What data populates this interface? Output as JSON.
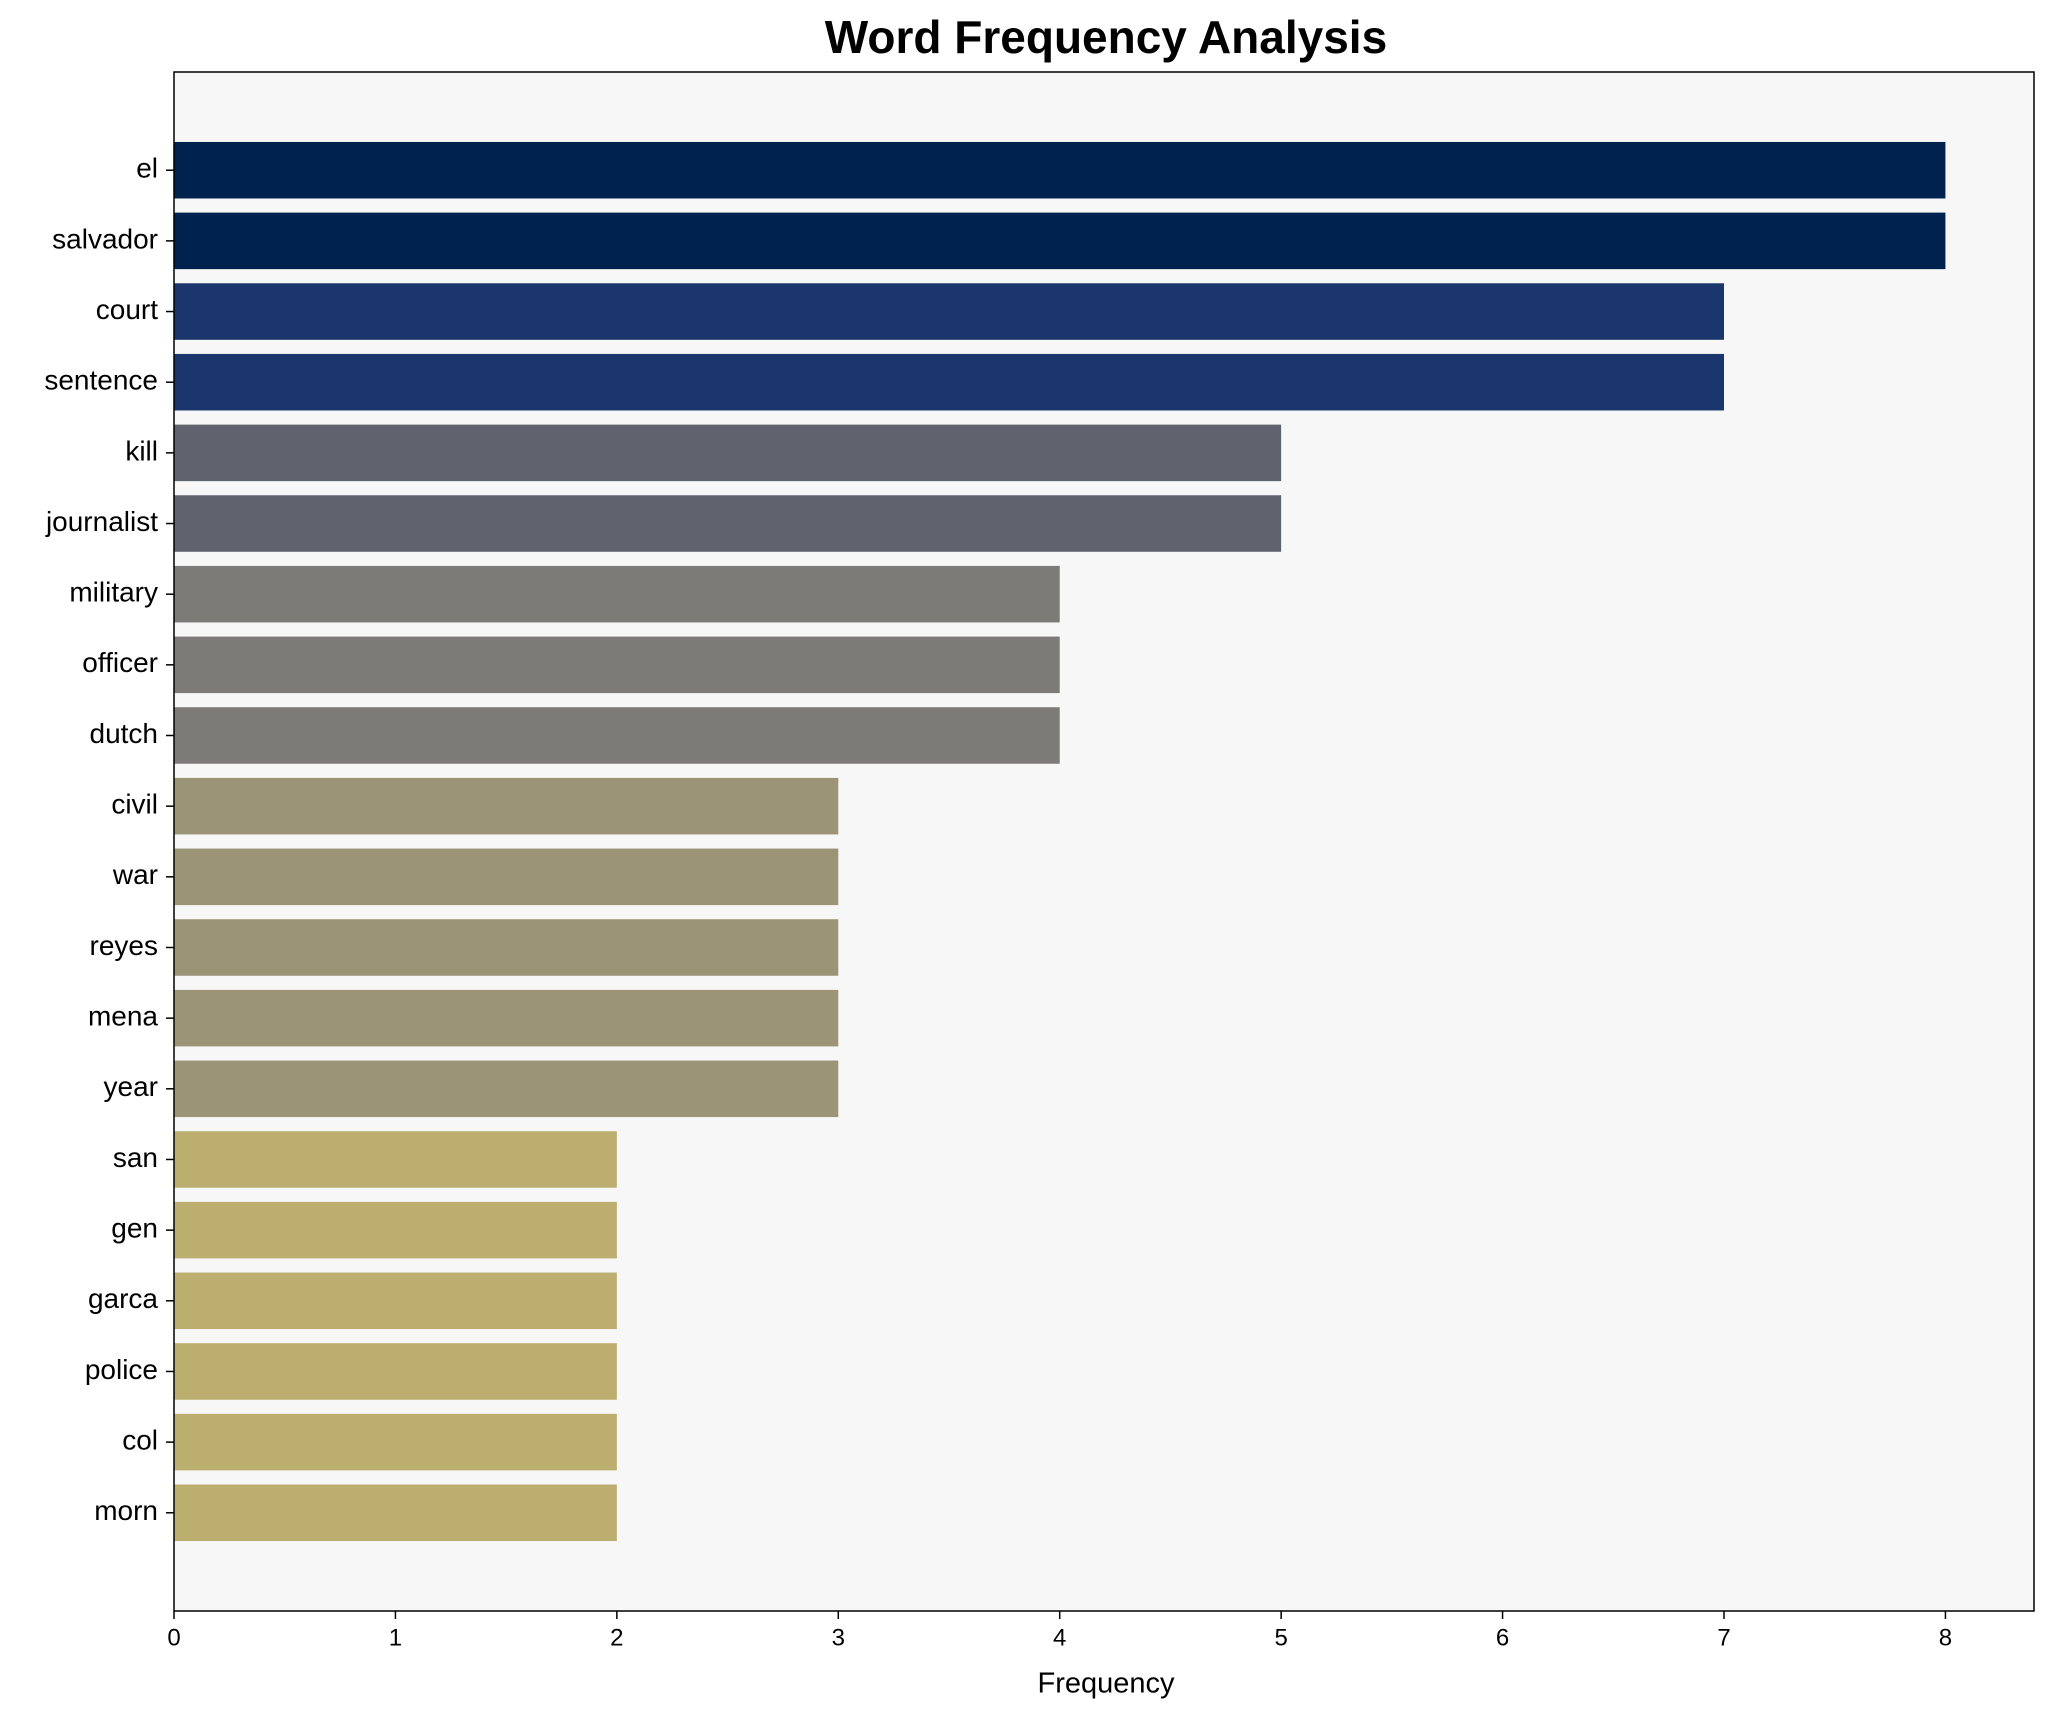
{
  "chart_data": {
    "type": "bar",
    "orientation": "horizontal",
    "title": "Word Frequency Analysis",
    "x_label": "Frequency",
    "categories": [
      "el",
      "salvador",
      "court",
      "sentence",
      "kill",
      "journalist",
      "military",
      "officer",
      "dutch",
      "civil",
      "war",
      "reyes",
      "mena",
      "year",
      "san",
      "gen",
      "garca",
      "police",
      "col",
      "morn"
    ],
    "values": [
      8,
      8,
      7,
      7,
      5,
      5,
      4,
      4,
      4,
      3,
      3,
      3,
      3,
      3,
      2,
      2,
      2,
      2,
      2,
      2
    ],
    "colors": [
      "#00224e",
      "#00224e",
      "#1a366c",
      "#1a366c",
      "#5f636e",
      "#5f636e",
      "#7c7b78",
      "#7c7b78",
      "#7c7b78",
      "#9b9476",
      "#9b9476",
      "#9b9476",
      "#9b9476",
      "#9b9476",
      "#bbae6e",
      "#bbae6e",
      "#bbae6e",
      "#bbae6e",
      "#bbae6e",
      "#bbae6e"
    ],
    "xlim": [
      0,
      8.4
    ],
    "xticks": [
      0,
      1,
      2,
      3,
      4,
      5,
      6,
      7,
      8
    ],
    "grid": false,
    "background": "#f7f7f7"
  }
}
